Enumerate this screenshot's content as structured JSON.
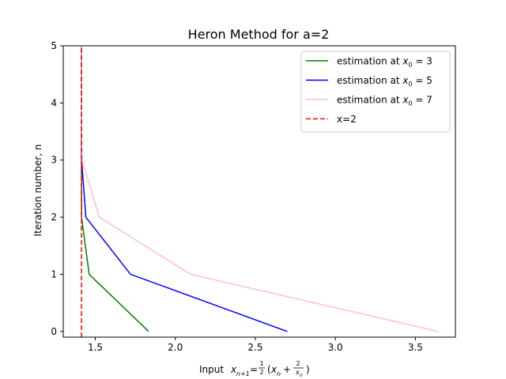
{
  "chart_data": {
    "type": "line",
    "title": "Heron Method for a=2",
    "xlabel": "Input",
    "xlabel_formula": "x_{n+1} = 1/2 (x_n + 2/x_n)",
    "ylabel": "Iteration number, n",
    "xlim": [
      1.3,
      3.75
    ],
    "ylim": [
      -0.1,
      5
    ],
    "x_ticks": [
      1.5,
      2.0,
      2.5,
      3.0,
      3.5
    ],
    "x_tick_labels": [
      "1.5",
      "2.0",
      "2.5",
      "3.0",
      "3.5"
    ],
    "y_ticks": [
      0,
      1,
      2,
      3,
      4,
      5
    ],
    "y_tick_labels": [
      "0",
      "1",
      "2",
      "3",
      "4",
      "5"
    ],
    "legend_position": "top-right",
    "series": [
      {
        "name": "estimation at x0 = 3",
        "legend_base": "estimation at",
        "legend_var": "x",
        "legend_sub": "0",
        "legend_rest": " = 3",
        "color": "#008000",
        "dash": "solid",
        "x": [
          1.8333,
          1.4621,
          1.4142,
          1.4142,
          1.4142,
          1.4142
        ],
        "y": [
          0,
          1,
          2,
          3,
          4,
          5
        ]
      },
      {
        "name": "estimation at x0 = 5",
        "legend_base": "estimation at",
        "legend_var": "x",
        "legend_sub": "0",
        "legend_rest": " = 5",
        "color": "#0000ff",
        "dash": "solid",
        "x": [
          2.7,
          1.7204,
          1.4415,
          1.4145,
          1.4142,
          1.4142
        ],
        "y": [
          0,
          1,
          2,
          3,
          4,
          5
        ]
      },
      {
        "name": "estimation at x0 = 7",
        "legend_base": "estimation at",
        "legend_var": "x",
        "legend_sub": "0",
        "legend_rest": " = 7",
        "color": "#ffc0cb",
        "dash": "solid",
        "x": [
          3.6429,
          2.096,
          1.5251,
          1.4182,
          1.4142,
          1.4142
        ],
        "y": [
          0,
          1,
          2,
          3,
          4,
          5
        ]
      },
      {
        "name": "x=2",
        "legend_base": "x=2",
        "color": "#ff0000",
        "dash": "dashed",
        "x": [
          1.4142,
          1.4142
        ],
        "y": [
          -0.1,
          5
        ]
      }
    ]
  }
}
